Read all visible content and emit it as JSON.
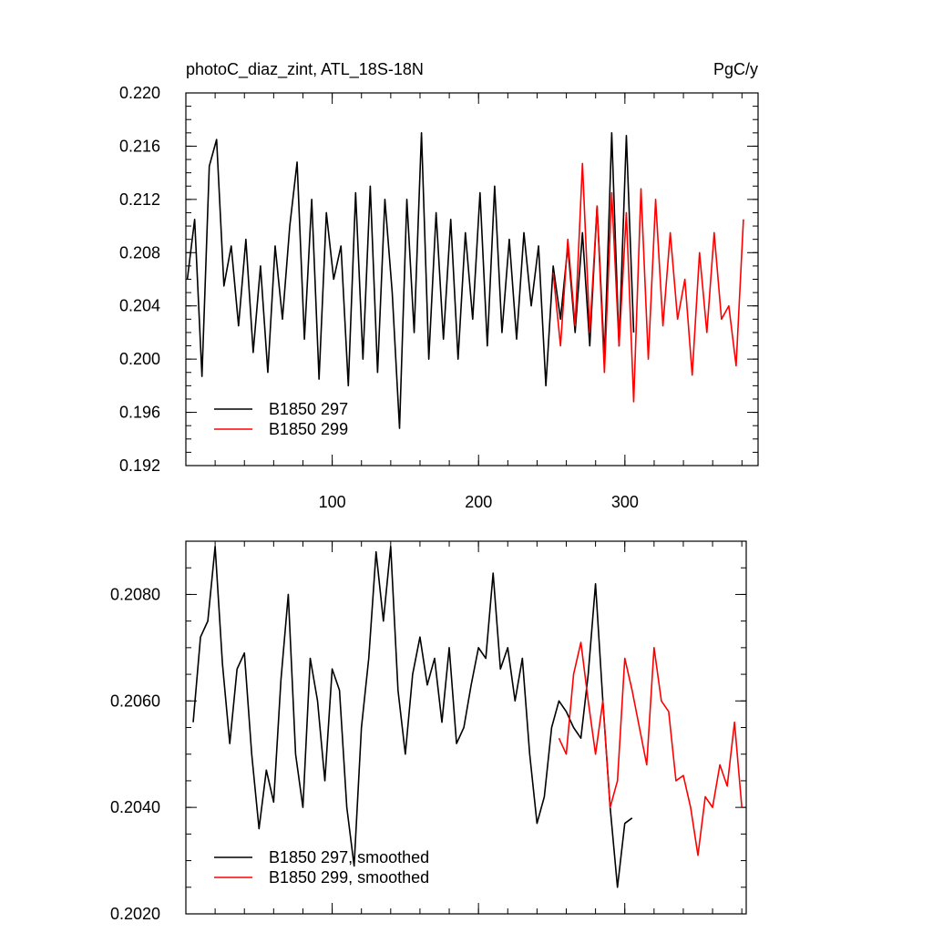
{
  "chart_data": [
    {
      "type": "line",
      "title": "photoC_diaz_zint, ATL_18S-18N",
      "unit": "PgC/y",
      "xlim": [
        0,
        391
      ],
      "xticks": [
        100,
        200,
        300
      ],
      "xtick_labels": true,
      "ylim": [
        0.192,
        0.22
      ],
      "yticks": [
        0.192,
        0.196,
        {
          "value": 0.2,
          "label": "0.200"
        },
        0.204,
        0.208,
        0.212,
        0.216,
        {
          "value": 0.22,
          "label": "0.220"
        }
      ],
      "legend": "lower left",
      "series": [
        {
          "name": "B1850 297",
          "color": "#000000",
          "x": [
            1,
            6,
            11,
            16,
            21,
            26,
            31,
            36,
            41,
            46,
            51,
            56,
            61,
            66,
            71,
            76,
            81,
            86,
            91,
            96,
            101,
            106,
            111,
            116,
            121,
            126,
            131,
            136,
            141,
            146,
            151,
            156,
            161,
            166,
            171,
            176,
            181,
            186,
            191,
            196,
            201,
            206,
            211,
            216,
            221,
            226,
            231,
            236,
            241,
            246,
            251,
            256,
            261,
            266,
            271,
            276,
            281,
            286,
            291,
            296,
            301,
            306
          ],
          "values": [
            0.206,
            0.2105,
            0.1987,
            0.2145,
            0.2165,
            0.2055,
            0.2085,
            0.2025,
            0.209,
            0.2005,
            0.207,
            0.199,
            0.2085,
            0.203,
            0.21,
            0.2148,
            0.2015,
            0.212,
            0.1985,
            0.211,
            0.206,
            0.2085,
            0.198,
            0.2125,
            0.2,
            0.213,
            0.199,
            0.212,
            0.205,
            0.1948,
            0.212,
            0.202,
            0.217,
            0.2,
            0.211,
            0.2015,
            0.2105,
            0.2,
            0.2095,
            0.203,
            0.2125,
            0.201,
            0.213,
            0.202,
            0.209,
            0.2015,
            0.2095,
            0.204,
            0.2085,
            0.198,
            0.207,
            0.203,
            0.2085,
            0.202,
            0.2095,
            0.201,
            0.2115,
            0.2,
            0.217,
            0.201,
            0.2168,
            0.202
          ]
        },
        {
          "name": "B1850 299",
          "color": "#ff0000",
          "x": [
            251,
            256,
            261,
            266,
            271,
            276,
            281,
            286,
            291,
            296,
            301,
            306,
            311,
            316,
            321,
            326,
            331,
            336,
            341,
            346,
            351,
            356,
            361,
            366,
            371,
            376,
            381
          ],
          "values": [
            0.2065,
            0.201,
            0.209,
            0.2025,
            0.2147,
            0.202,
            0.2115,
            0.199,
            0.2125,
            0.201,
            0.211,
            0.1968,
            0.2128,
            0.2,
            0.212,
            0.2025,
            0.2095,
            0.203,
            0.206,
            0.1988,
            0.208,
            0.202,
            0.2095,
            0.203,
            0.204,
            0.1995,
            0.2105
          ]
        }
      ]
    },
    {
      "type": "line",
      "xlim": [
        0,
        383
      ],
      "xticks": [
        100,
        200,
        300
      ],
      "xtick_labels": false,
      "ylim": [
        0.202,
        0.209
      ],
      "yticks": [
        {
          "value": 0.202,
          "label": "0.2020"
        },
        {
          "value": 0.204,
          "label": "0.2040"
        },
        {
          "value": 0.206,
          "label": "0.2060"
        },
        {
          "value": 0.208,
          "label": "0.2080"
        }
      ],
      "legend": "lower left",
      "series": [
        {
          "name": "B1850 297, smoothed",
          "color": "#000000",
          "x": [
            5,
            10,
            15,
            20,
            25,
            30,
            35,
            40,
            45,
            50,
            55,
            60,
            65,
            70,
            75,
            80,
            85,
            90,
            95,
            100,
            105,
            110,
            115,
            120,
            125,
            130,
            135,
            140,
            145,
            150,
            155,
            160,
            165,
            170,
            175,
            180,
            185,
            190,
            195,
            200,
            205,
            210,
            215,
            220,
            225,
            230,
            235,
            240,
            245,
            250,
            255,
            260,
            265,
            270,
            275,
            280,
            285,
            290,
            295,
            300,
            305
          ],
          "values": [
            0.2056,
            0.2072,
            0.2075,
            0.2089,
            0.2067,
            0.2052,
            0.2066,
            0.2069,
            0.205,
            0.2036,
            0.2047,
            0.2041,
            0.2064,
            0.208,
            0.205,
            0.204,
            0.2068,
            0.206,
            0.2045,
            0.2066,
            0.2062,
            0.204,
            0.2029,
            0.2055,
            0.2068,
            0.2088,
            0.2075,
            0.2089,
            0.2062,
            0.205,
            0.2065,
            0.2072,
            0.2063,
            0.2068,
            0.2056,
            0.207,
            0.2052,
            0.2055,
            0.2063,
            0.207,
            0.2068,
            0.2084,
            0.2066,
            0.207,
            0.206,
            0.2068,
            0.205,
            0.2037,
            0.2042,
            0.2055,
            0.206,
            0.2058,
            0.2055,
            0.2053,
            0.2065,
            0.2082,
            0.206,
            0.204,
            0.2025,
            0.2037,
            0.2038
          ]
        },
        {
          "name": "B1850 299, smoothed",
          "color": "#ff0000",
          "x": [
            255,
            260,
            265,
            270,
            275,
            280,
            285,
            290,
            295,
            300,
            305,
            310,
            315,
            320,
            325,
            330,
            335,
            340,
            345,
            350,
            355,
            360,
            365,
            370,
            375,
            380
          ],
          "values": [
            0.2053,
            0.205,
            0.2065,
            0.2071,
            0.206,
            0.205,
            0.206,
            0.204,
            0.2045,
            0.2068,
            0.2062,
            0.2055,
            0.2048,
            0.207,
            0.206,
            0.2058,
            0.2045,
            0.2046,
            0.204,
            0.2031,
            0.2042,
            0.204,
            0.2048,
            0.2044,
            0.2056,
            0.204
          ]
        }
      ]
    }
  ]
}
